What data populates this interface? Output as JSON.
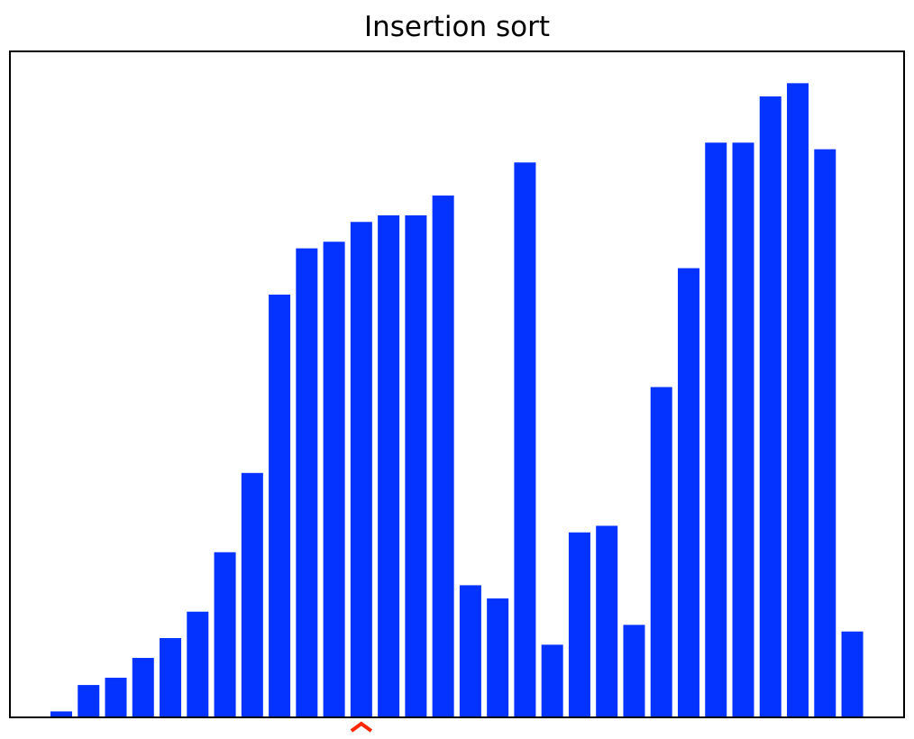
{
  "chart_data": {
    "type": "bar",
    "title": "Insertion sort",
    "xlabel": "",
    "ylabel": "",
    "ticks_visible": false,
    "grid": false,
    "ylim": [
      0,
      1
    ],
    "values": [
      0.009,
      0.049,
      0.06,
      0.09,
      0.12,
      0.16,
      0.25,
      0.37,
      0.64,
      0.71,
      0.72,
      0.75,
      0.76,
      0.76,
      0.79,
      0.2,
      0.18,
      0.84,
      0.11,
      0.28,
      0.29,
      0.14,
      0.5,
      0.68,
      0.87,
      0.87,
      0.94,
      0.96,
      0.86,
      0.13
    ],
    "bar_color": "#0433ff",
    "marker": {
      "symbol": "^",
      "index": 11,
      "color": "#ff2600"
    }
  }
}
